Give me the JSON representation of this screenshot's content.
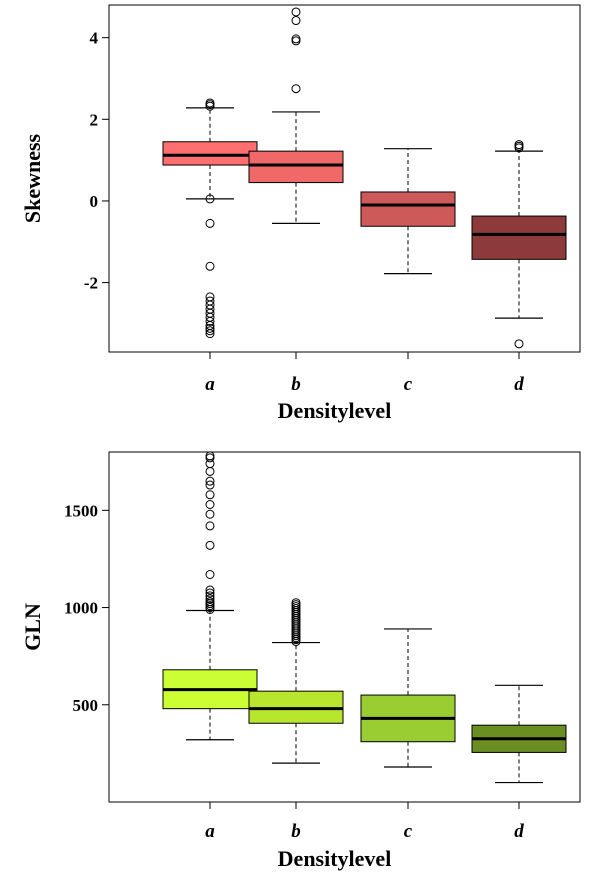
{
  "chart_data": [
    {
      "type": "boxplot",
      "title": "",
      "xlabel": "Densitylevel",
      "ylabel": "Skewness",
      "categories": [
        "a",
        "b",
        "c",
        "d"
      ],
      "ylim": [
        -3.7,
        4.8
      ],
      "yticks": [
        -2,
        0,
        2,
        4
      ],
      "ytick_labels": [
        "-2",
        "0",
        "2",
        "4"
      ],
      "grid": false,
      "boxes": [
        {
          "category": "a",
          "color": "#FF6F6F",
          "whisker_low": 0.05,
          "q1": 0.88,
          "median": 1.12,
          "q3": 1.45,
          "whisker_high": 2.28,
          "outliers": [
            2.32,
            2.36,
            2.4,
            0.05,
            -0.55,
            -1.6,
            -2.35,
            -2.45,
            -2.55,
            -2.65,
            -2.75,
            -2.85,
            -2.95,
            -3.05,
            -3.12,
            -3.18,
            -3.25
          ]
        },
        {
          "category": "b",
          "color": "#F06969",
          "whisker_low": -0.55,
          "q1": 0.45,
          "median": 0.88,
          "q3": 1.22,
          "whisker_high": 2.18,
          "outliers": [
            2.75,
            3.92,
            3.97,
            4.42,
            4.63
          ]
        },
        {
          "category": "c",
          "color": "#CD5959",
          "whisker_low": -1.78,
          "q1": -0.62,
          "median": -0.1,
          "q3": 0.22,
          "whisker_high": 1.28,
          "outliers": []
        },
        {
          "category": "d",
          "color": "#8C3A3A",
          "whisker_low": -2.87,
          "q1": -1.43,
          "median": -0.82,
          "q3": -0.37,
          "whisker_high": 1.22,
          "outliers": [
            1.3,
            1.34,
            1.38,
            -3.5
          ]
        }
      ]
    },
    {
      "type": "boxplot",
      "title": "",
      "xlabel": "Densitylevel",
      "ylabel": "GLN",
      "categories": [
        "a",
        "b",
        "c",
        "d"
      ],
      "ylim": [
        0,
        1800
      ],
      "yticks": [
        500,
        1000,
        1500
      ],
      "ytick_labels": [
        "500",
        "1000",
        "1500"
      ],
      "grid": false,
      "boxes": [
        {
          "category": "a",
          "color": "#CCFF33",
          "whisker_low": 320,
          "q1": 480,
          "median": 578,
          "q3": 680,
          "whisker_high": 985,
          "outliers": [
            990,
            1000,
            1010,
            1020,
            1030,
            1045,
            1060,
            1075,
            1090,
            1170,
            1320,
            1420,
            1480,
            1530,
            1580,
            1630,
            1650,
            1700,
            1740,
            1770,
            1780
          ]
        },
        {
          "category": "b",
          "color": "#B8E62E",
          "whisker_low": 200,
          "q1": 405,
          "median": 480,
          "q3": 570,
          "whisker_high": 820,
          "outliers": [
            825,
            835,
            845,
            855,
            865,
            875,
            885,
            895,
            905,
            915,
            925,
            935,
            945,
            955,
            965,
            975,
            985,
            995,
            1005,
            1015,
            1025
          ]
        },
        {
          "category": "c",
          "color": "#9ACD32",
          "whisker_low": 180,
          "q1": 310,
          "median": 430,
          "q3": 550,
          "whisker_high": 890,
          "outliers": []
        },
        {
          "category": "d",
          "color": "#6B8E23",
          "whisker_low": 100,
          "q1": 255,
          "median": 325,
          "q3": 395,
          "whisker_high": 600,
          "outliers": []
        }
      ]
    }
  ]
}
